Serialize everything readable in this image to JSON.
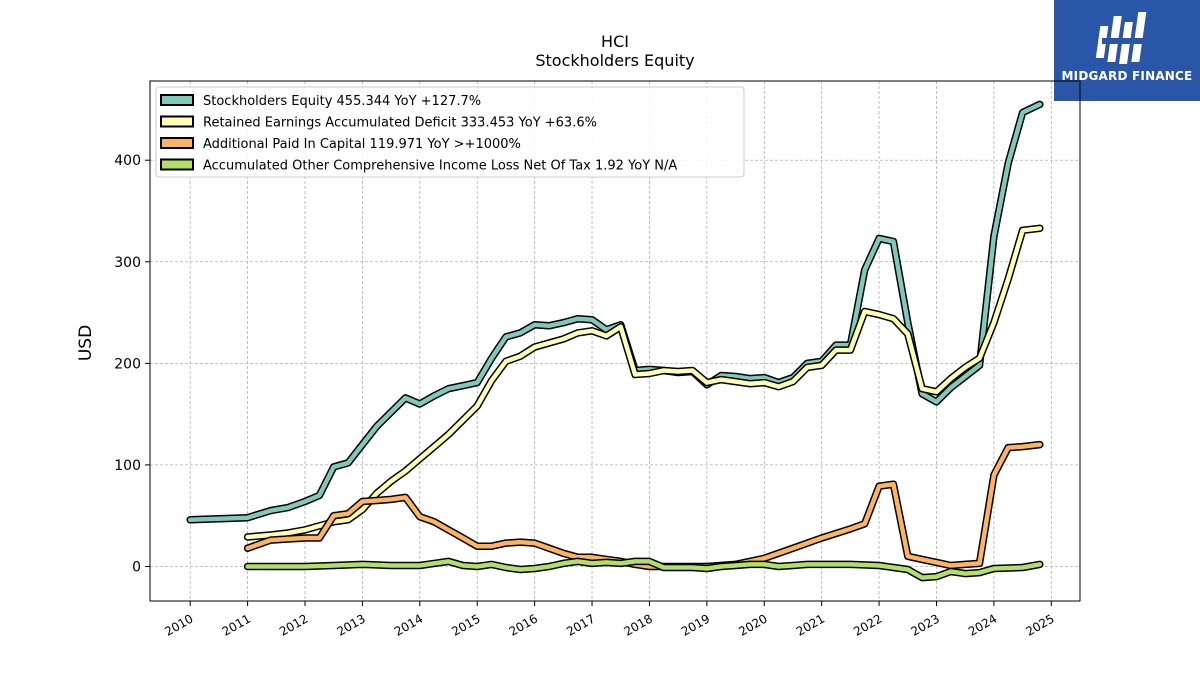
{
  "header": {
    "ticker": "HCI",
    "title": "Stockholders  Equity"
  },
  "logo": {
    "text": "MIDGARD FINANCE",
    "color": "#2a56a8"
  },
  "chart_data": {
    "type": "line",
    "ylabel": "USD",
    "xlabel": "",
    "xlim": [
      2009.3,
      2025.5
    ],
    "ylim": [
      -34,
      478
    ],
    "grid": true,
    "legend_position": "top-left",
    "x_ticks": [
      "2010",
      "2011",
      "2012",
      "2013",
      "2014",
      "2015",
      "2016",
      "2017",
      "2018",
      "2019",
      "2020",
      "2021",
      "2022",
      "2023",
      "2024",
      "2025"
    ],
    "y_ticks": [
      0,
      100,
      200,
      300,
      400
    ],
    "series": [
      {
        "name": "Stockholders Equity",
        "legend": "Stockholders Equity  455.344 YoY +127.7%",
        "color": "#7fc9bb",
        "points": [
          [
            2010.0,
            46
          ],
          [
            2011.0,
            48
          ],
          [
            2011.4,
            55
          ],
          [
            2011.7,
            58
          ],
          [
            2012.0,
            64
          ],
          [
            2012.25,
            70
          ],
          [
            2012.5,
            98
          ],
          [
            2012.75,
            102
          ],
          [
            2013.0,
            120
          ],
          [
            2013.25,
            138
          ],
          [
            2013.5,
            152
          ],
          [
            2013.75,
            166
          ],
          [
            2014.0,
            160
          ],
          [
            2014.25,
            168
          ],
          [
            2014.5,
            175
          ],
          [
            2014.75,
            178
          ],
          [
            2015.0,
            181
          ],
          [
            2015.25,
            205
          ],
          [
            2015.5,
            226
          ],
          [
            2015.75,
            230
          ],
          [
            2016.0,
            238
          ],
          [
            2016.25,
            237
          ],
          [
            2016.5,
            240
          ],
          [
            2016.75,
            244
          ],
          [
            2017.0,
            243
          ],
          [
            2017.25,
            233
          ],
          [
            2017.5,
            238
          ],
          [
            2017.75,
            193
          ],
          [
            2018.0,
            194
          ],
          [
            2018.25,
            193
          ],
          [
            2018.5,
            191
          ],
          [
            2018.75,
            192
          ],
          [
            2019.0,
            179
          ],
          [
            2019.25,
            188
          ],
          [
            2019.5,
            187
          ],
          [
            2019.75,
            185
          ],
          [
            2020.0,
            186
          ],
          [
            2020.25,
            181
          ],
          [
            2020.5,
            186
          ],
          [
            2020.75,
            200
          ],
          [
            2021.0,
            202
          ],
          [
            2021.25,
            218
          ],
          [
            2021.5,
            218
          ],
          [
            2021.75,
            292
          ],
          [
            2022.0,
            323
          ],
          [
            2022.25,
            320
          ],
          [
            2022.5,
            240
          ],
          [
            2022.75,
            170
          ],
          [
            2023.0,
            162
          ],
          [
            2023.25,
            176
          ],
          [
            2023.5,
            187
          ],
          [
            2023.75,
            198
          ],
          [
            2024.0,
            325
          ],
          [
            2024.25,
            397
          ],
          [
            2024.5,
            447
          ],
          [
            2024.8,
            455
          ]
        ]
      },
      {
        "name": "Retained Earnings Accumulated Deficit",
        "legend": "Retained Earnings Accumulated Deficit  333.453 YoY +63.6%",
        "color": "#ffffb3",
        "points": [
          [
            2011.0,
            29
          ],
          [
            2011.4,
            31
          ],
          [
            2011.7,
            33
          ],
          [
            2012.0,
            36
          ],
          [
            2012.25,
            40
          ],
          [
            2012.5,
            44
          ],
          [
            2012.75,
            46
          ],
          [
            2013.0,
            56
          ],
          [
            2013.25,
            72
          ],
          [
            2013.5,
            84
          ],
          [
            2013.75,
            94
          ],
          [
            2014.0,
            106
          ],
          [
            2014.25,
            118
          ],
          [
            2014.5,
            130
          ],
          [
            2014.75,
            144
          ],
          [
            2015.0,
            158
          ],
          [
            2015.25,
            183
          ],
          [
            2015.5,
            202
          ],
          [
            2015.75,
            207
          ],
          [
            2016.0,
            216
          ],
          [
            2016.25,
            220
          ],
          [
            2016.5,
            224
          ],
          [
            2016.75,
            230
          ],
          [
            2017.0,
            232
          ],
          [
            2017.25,
            227
          ],
          [
            2017.5,
            236
          ],
          [
            2017.75,
            189
          ],
          [
            2018.0,
            190
          ],
          [
            2018.25,
            193
          ],
          [
            2018.5,
            192
          ],
          [
            2018.75,
            193
          ],
          [
            2019.0,
            181
          ],
          [
            2019.25,
            184
          ],
          [
            2019.5,
            182
          ],
          [
            2019.75,
            180
          ],
          [
            2020.0,
            181
          ],
          [
            2020.25,
            177
          ],
          [
            2020.5,
            182
          ],
          [
            2020.75,
            196
          ],
          [
            2021.0,
            198
          ],
          [
            2021.25,
            213
          ],
          [
            2021.5,
            213
          ],
          [
            2021.75,
            251
          ],
          [
            2022.0,
            248
          ],
          [
            2022.25,
            244
          ],
          [
            2022.5,
            229
          ],
          [
            2022.75,
            175
          ],
          [
            2023.0,
            172
          ],
          [
            2023.25,
            185
          ],
          [
            2023.5,
            196
          ],
          [
            2023.75,
            205
          ],
          [
            2024.0,
            240
          ],
          [
            2024.25,
            283
          ],
          [
            2024.5,
            331
          ],
          [
            2024.8,
            333
          ]
        ]
      },
      {
        "name": "Additional Paid In Capital",
        "legend": "Additional Paid In Capital  119.971 YoY >+1000%",
        "color": "#fdb462",
        "points": [
          [
            2011.0,
            18
          ],
          [
            2011.4,
            26
          ],
          [
            2011.7,
            27
          ],
          [
            2012.0,
            28
          ],
          [
            2012.25,
            28
          ],
          [
            2012.5,
            50
          ],
          [
            2012.75,
            52
          ],
          [
            2013.0,
            64
          ],
          [
            2013.25,
            65
          ],
          [
            2013.5,
            66
          ],
          [
            2013.75,
            68
          ],
          [
            2014.0,
            49
          ],
          [
            2014.25,
            44
          ],
          [
            2014.5,
            36
          ],
          [
            2014.75,
            28
          ],
          [
            2015.0,
            20
          ],
          [
            2015.25,
            20
          ],
          [
            2015.5,
            23
          ],
          [
            2015.75,
            24
          ],
          [
            2016.0,
            23
          ],
          [
            2016.25,
            18
          ],
          [
            2016.5,
            13
          ],
          [
            2016.75,
            9
          ],
          [
            2017.0,
            9
          ],
          [
            2017.25,
            7
          ],
          [
            2017.5,
            5
          ],
          [
            2017.75,
            2
          ],
          [
            2018.0,
            0
          ],
          [
            2018.25,
            0
          ],
          [
            2018.5,
            0
          ],
          [
            2018.75,
            0
          ],
          [
            2019.0,
            0
          ],
          [
            2019.5,
            2
          ],
          [
            2020.0,
            8
          ],
          [
            2020.5,
            18
          ],
          [
            2021.0,
            28
          ],
          [
            2021.5,
            37
          ],
          [
            2021.75,
            42
          ],
          [
            2022.0,
            79
          ],
          [
            2022.25,
            81
          ],
          [
            2022.5,
            10
          ],
          [
            2022.75,
            7
          ],
          [
            2023.0,
            4
          ],
          [
            2023.25,
            1
          ],
          [
            2023.5,
            2
          ],
          [
            2023.75,
            3
          ],
          [
            2024.0,
            90
          ],
          [
            2024.25,
            117
          ],
          [
            2024.5,
            118
          ],
          [
            2024.8,
            120
          ]
        ]
      },
      {
        "name": "Accumulated Other Comprehensive Income Loss Net Of Tax",
        "legend": "Accumulated Other Comprehensive Income Loss Net Of Tax  1.92 YoY N/A",
        "color": "#b3de69",
        "points": [
          [
            2011.0,
            0
          ],
          [
            2011.5,
            0
          ],
          [
            2012.0,
            0
          ],
          [
            2012.5,
            1
          ],
          [
            2013.0,
            2
          ],
          [
            2013.5,
            1
          ],
          [
            2014.0,
            1
          ],
          [
            2014.25,
            3
          ],
          [
            2014.5,
            5
          ],
          [
            2014.75,
            1
          ],
          [
            2015.0,
            0
          ],
          [
            2015.25,
            2
          ],
          [
            2015.5,
            -1
          ],
          [
            2015.75,
            -3
          ],
          [
            2016.0,
            -2
          ],
          [
            2016.25,
            0
          ],
          [
            2016.5,
            3
          ],
          [
            2016.75,
            5
          ],
          [
            2017.0,
            3
          ],
          [
            2017.25,
            4
          ],
          [
            2017.5,
            3
          ],
          [
            2017.75,
            5
          ],
          [
            2018.0,
            5
          ],
          [
            2018.25,
            -1
          ],
          [
            2018.5,
            -1
          ],
          [
            2018.75,
            -1
          ],
          [
            2019.0,
            -2
          ],
          [
            2019.25,
            0
          ],
          [
            2019.5,
            1
          ],
          [
            2019.75,
            2
          ],
          [
            2020.0,
            2
          ],
          [
            2020.25,
            0
          ],
          [
            2020.5,
            1
          ],
          [
            2020.75,
            2
          ],
          [
            2021.0,
            2
          ],
          [
            2021.5,
            2
          ],
          [
            2022.0,
            1
          ],
          [
            2022.25,
            -1
          ],
          [
            2022.5,
            -3
          ],
          [
            2022.75,
            -11
          ],
          [
            2023.0,
            -10
          ],
          [
            2023.25,
            -5
          ],
          [
            2023.5,
            -7
          ],
          [
            2023.75,
            -6
          ],
          [
            2024.0,
            -2
          ],
          [
            2024.5,
            -1
          ],
          [
            2024.8,
            2
          ]
        ]
      }
    ]
  }
}
